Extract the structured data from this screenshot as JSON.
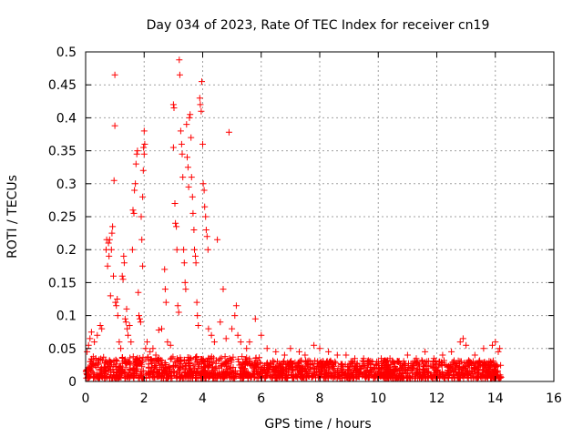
{
  "chart_data": {
    "type": "scatter",
    "title": "Day 034 of 2023, Rate Of TEC Index for receiver cn19",
    "xlabel": "GPS time / hours",
    "ylabel": "ROTI / TECUs",
    "xlim": [
      0,
      16
    ],
    "ylim": [
      0,
      0.5
    ],
    "x_ticks": [
      0,
      2,
      4,
      6,
      8,
      10,
      12,
      14,
      16
    ],
    "y_ticks": [
      0,
      0.05,
      0.1,
      0.15,
      0.2,
      0.25,
      0.3,
      0.35,
      0.4,
      0.45,
      0.5
    ],
    "x_tick_labels": [
      "0",
      "2",
      "4",
      "6",
      "8",
      "10",
      "12",
      "14",
      "16"
    ],
    "y_tick_labels": [
      "0",
      "0.05",
      "0.1",
      "0.15",
      "0.2",
      "0.25",
      "0.3",
      "0.35",
      "0.4",
      "0.45",
      "0.5"
    ],
    "grid": true,
    "marker": "+",
    "color": "#ff0000",
    "series": [
      {
        "name": "ROTI",
        "points": [
          [
            0.05,
            0.045
          ],
          [
            0.1,
            0.055
          ],
          [
            0.15,
            0.065
          ],
          [
            0.2,
            0.075
          ],
          [
            0.3,
            0.06
          ],
          [
            0.4,
            0.07
          ],
          [
            0.5,
            0.085
          ],
          [
            0.55,
            0.08
          ],
          [
            0.7,
            0.2
          ],
          [
            0.72,
            0.215
          ],
          [
            0.75,
            0.175
          ],
          [
            0.78,
            0.21
          ],
          [
            0.8,
            0.19
          ],
          [
            0.82,
            0.215
          ],
          [
            0.85,
            0.13
          ],
          [
            0.88,
            0.2
          ],
          [
            0.9,
            0.225
          ],
          [
            0.92,
            0.235
          ],
          [
            0.95,
            0.16
          ],
          [
            0.97,
            0.305
          ],
          [
            1.0,
            0.465
          ],
          [
            1.0,
            0.388
          ],
          [
            1.02,
            0.12
          ],
          [
            1.05,
            0.115
          ],
          [
            1.08,
            0.125
          ],
          [
            1.1,
            0.1
          ],
          [
            1.15,
            0.06
          ],
          [
            1.2,
            0.05
          ],
          [
            1.25,
            0.16
          ],
          [
            1.28,
            0.155
          ],
          [
            1.3,
            0.19
          ],
          [
            1.32,
            0.18
          ],
          [
            1.35,
            0.095
          ],
          [
            1.38,
            0.09
          ],
          [
            1.4,
            0.11
          ],
          [
            1.42,
            0.08
          ],
          [
            1.45,
            0.07
          ],
          [
            1.5,
            0.085
          ],
          [
            1.55,
            0.06
          ],
          [
            1.6,
            0.2
          ],
          [
            1.62,
            0.26
          ],
          [
            1.65,
            0.255
          ],
          [
            1.67,
            0.29
          ],
          [
            1.7,
            0.3
          ],
          [
            1.72,
            0.33
          ],
          [
            1.75,
            0.345
          ],
          [
            1.77,
            0.35
          ],
          [
            1.8,
            0.135
          ],
          [
            1.82,
            0.1
          ],
          [
            1.85,
            0.095
          ],
          [
            1.88,
            0.09
          ],
          [
            1.9,
            0.25
          ],
          [
            1.92,
            0.215
          ],
          [
            1.95,
            0.175
          ],
          [
            1.95,
            0.28
          ],
          [
            1.97,
            0.32
          ],
          [
            1.98,
            0.355
          ],
          [
            2.0,
            0.38
          ],
          [
            2.0,
            0.345
          ],
          [
            2.02,
            0.36
          ],
          [
            2.05,
            0.05
          ],
          [
            2.1,
            0.06
          ],
          [
            2.2,
            0.045
          ],
          [
            2.3,
            0.05
          ],
          [
            2.4,
            0.04
          ],
          [
            2.5,
            0.078
          ],
          [
            2.6,
            0.08
          ],
          [
            2.7,
            0.17
          ],
          [
            2.72,
            0.14
          ],
          [
            2.75,
            0.12
          ],
          [
            2.8,
            0.06
          ],
          [
            2.9,
            0.055
          ],
          [
            3.0,
            0.355
          ],
          [
            3.0,
            0.42
          ],
          [
            3.02,
            0.415
          ],
          [
            3.05,
            0.27
          ],
          [
            3.07,
            0.24
          ],
          [
            3.1,
            0.235
          ],
          [
            3.12,
            0.2
          ],
          [
            3.15,
            0.115
          ],
          [
            3.18,
            0.105
          ],
          [
            3.2,
            0.488
          ],
          [
            3.22,
            0.465
          ],
          [
            3.25,
            0.38
          ],
          [
            3.28,
            0.36
          ],
          [
            3.3,
            0.345
          ],
          [
            3.32,
            0.31
          ],
          [
            3.35,
            0.2
          ],
          [
            3.37,
            0.18
          ],
          [
            3.4,
            0.15
          ],
          [
            3.42,
            0.14
          ],
          [
            3.45,
            0.39
          ],
          [
            3.47,
            0.34
          ],
          [
            3.5,
            0.325
          ],
          [
            3.52,
            0.295
          ],
          [
            3.55,
            0.4
          ],
          [
            3.57,
            0.405
          ],
          [
            3.6,
            0.37
          ],
          [
            3.62,
            0.31
          ],
          [
            3.65,
            0.28
          ],
          [
            3.67,
            0.255
          ],
          [
            3.7,
            0.23
          ],
          [
            3.72,
            0.2
          ],
          [
            3.75,
            0.19
          ],
          [
            3.77,
            0.18
          ],
          [
            3.8,
            0.12
          ],
          [
            3.82,
            0.1
          ],
          [
            3.85,
            0.085
          ],
          [
            3.9,
            0.43
          ],
          [
            3.92,
            0.42
          ],
          [
            3.95,
            0.41
          ],
          [
            3.97,
            0.455
          ],
          [
            4.0,
            0.36
          ],
          [
            4.02,
            0.3
          ],
          [
            4.05,
            0.29
          ],
          [
            4.07,
            0.265
          ],
          [
            4.1,
            0.25
          ],
          [
            4.12,
            0.23
          ],
          [
            4.15,
            0.22
          ],
          [
            4.18,
            0.2
          ],
          [
            4.2,
            0.08
          ],
          [
            4.3,
            0.07
          ],
          [
            4.4,
            0.06
          ],
          [
            4.5,
            0.215
          ],
          [
            4.6,
            0.09
          ],
          [
            4.7,
            0.14
          ],
          [
            4.8,
            0.065
          ],
          [
            4.9,
            0.378
          ],
          [
            5.0,
            0.08
          ],
          [
            5.1,
            0.1
          ],
          [
            5.15,
            0.115
          ],
          [
            5.2,
            0.07
          ],
          [
            5.3,
            0.06
          ],
          [
            5.5,
            0.05
          ],
          [
            5.6,
            0.06
          ],
          [
            5.8,
            0.095
          ],
          [
            6.0,
            0.07
          ],
          [
            6.2,
            0.05
          ],
          [
            6.5,
            0.045
          ],
          [
            6.8,
            0.04
          ],
          [
            7.0,
            0.05
          ],
          [
            7.3,
            0.045
          ],
          [
            7.5,
            0.04
          ],
          [
            7.8,
            0.055
          ],
          [
            8.0,
            0.05
          ],
          [
            8.3,
            0.045
          ],
          [
            8.6,
            0.04
          ],
          [
            8.9,
            0.04
          ],
          [
            9.2,
            0.035
          ],
          [
            9.5,
            0.035
          ],
          [
            9.8,
            0.03
          ],
          [
            10.1,
            0.035
          ],
          [
            10.4,
            0.035
          ],
          [
            10.7,
            0.03
          ],
          [
            11.0,
            0.04
          ],
          [
            11.3,
            0.035
          ],
          [
            11.6,
            0.045
          ],
          [
            11.9,
            0.035
          ],
          [
            12.2,
            0.04
          ],
          [
            12.5,
            0.045
          ],
          [
            12.8,
            0.06
          ],
          [
            12.9,
            0.065
          ],
          [
            13.0,
            0.055
          ],
          [
            13.3,
            0.04
          ],
          [
            13.6,
            0.05
          ],
          [
            13.9,
            0.055
          ],
          [
            14.0,
            0.06
          ],
          [
            14.1,
            0.045
          ],
          [
            14.15,
            0.05
          ]
        ],
        "dense_band": [
          {
            "x_from": 0.0,
            "x_to": 6.0,
            "y_min": 0.005,
            "y_max": 0.038
          },
          {
            "x_from": 6.0,
            "x_to": 14.2,
            "y_min": 0.005,
            "y_max": 0.032
          }
        ]
      }
    ]
  }
}
